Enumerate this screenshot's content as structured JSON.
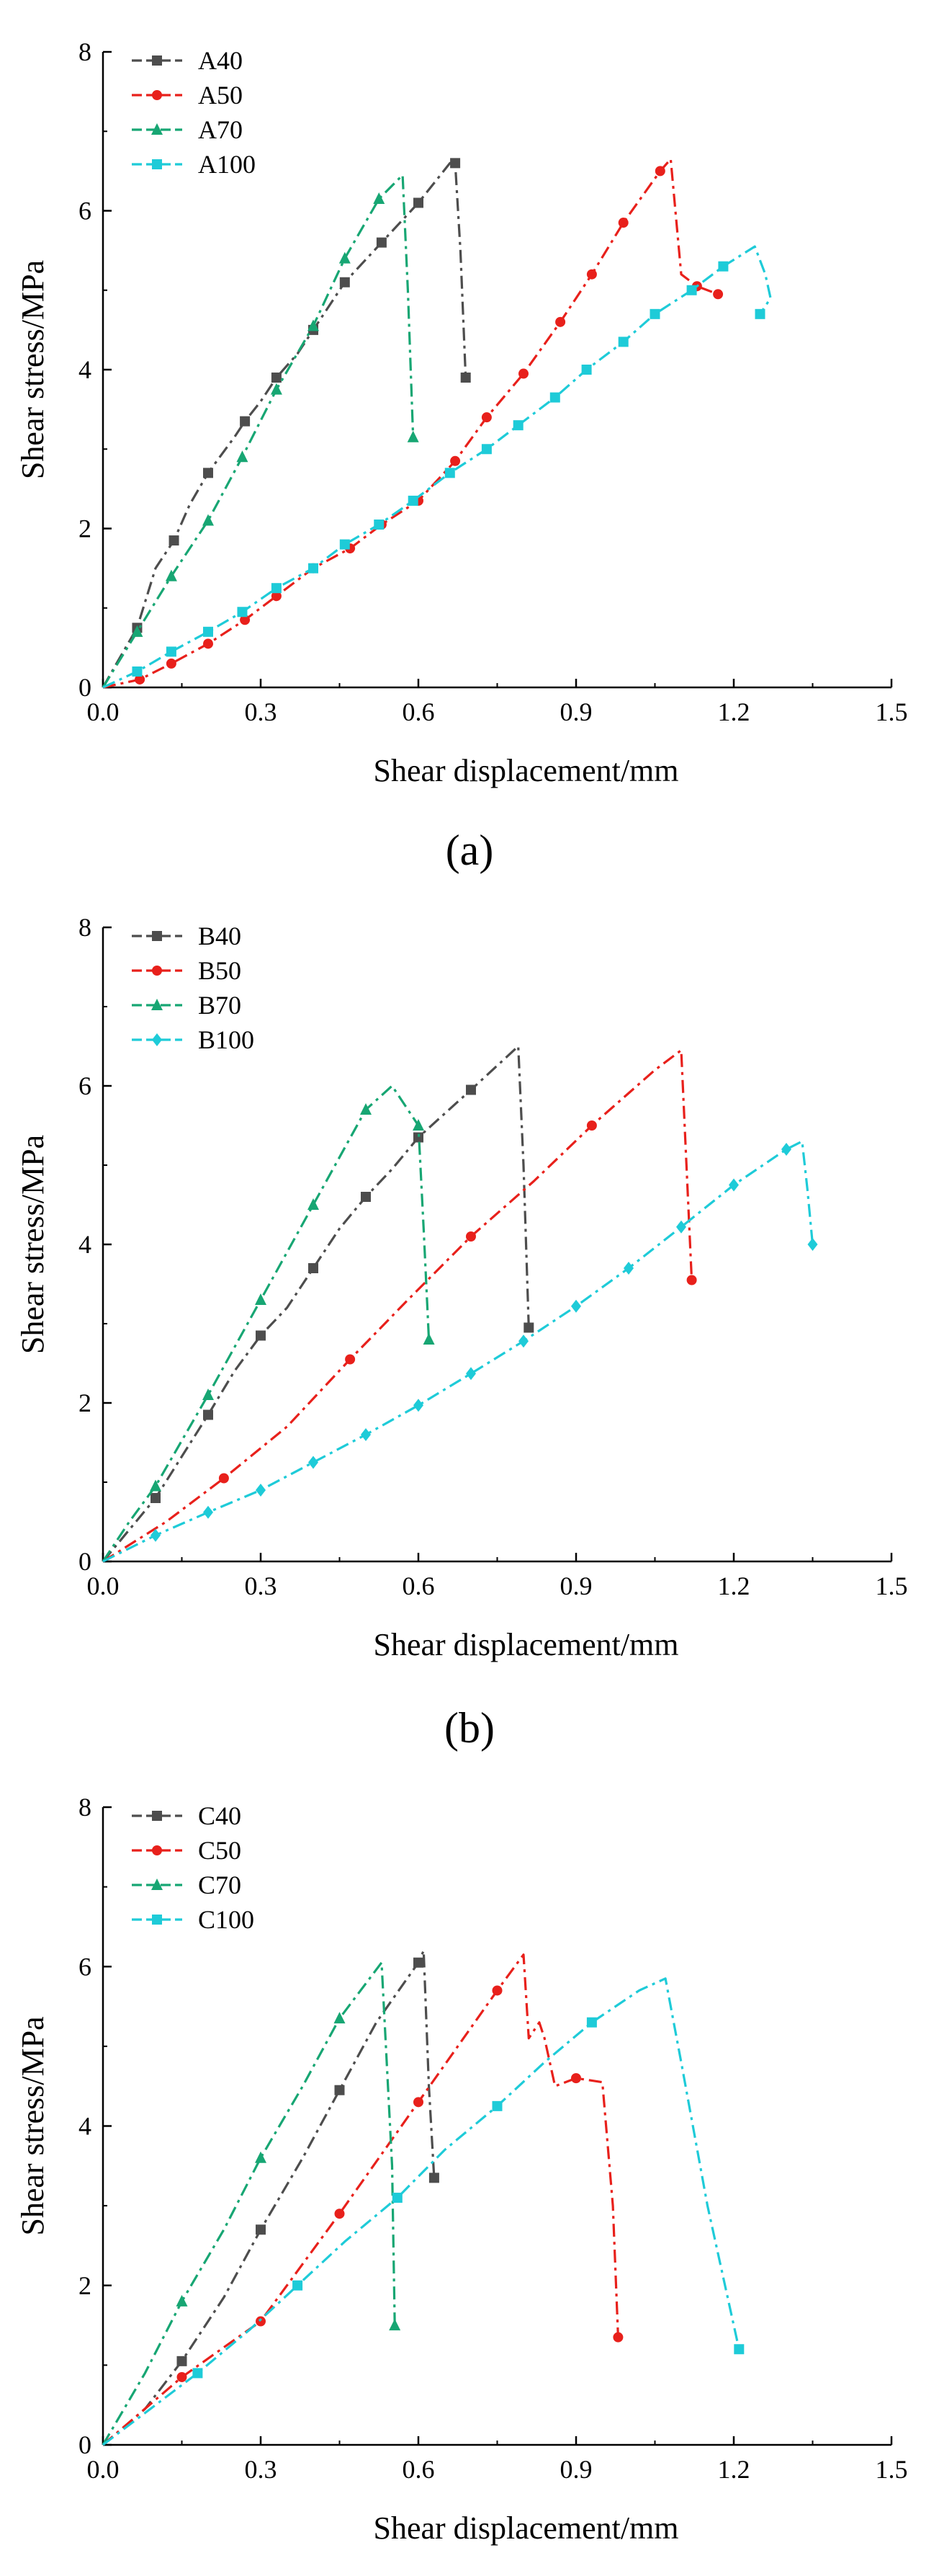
{
  "chart_data": [
    {
      "type": "line",
      "panel_label": "(a)",
      "xlabel": "Shear displacement/mm",
      "ylabel": "Shear stress/MPa",
      "xlim": [
        0,
        1.5
      ],
      "ylim": [
        0,
        8
      ],
      "xticks": [
        "0.0",
        "0.3",
        "0.6",
        "0.9",
        "1.2",
        "1.5"
      ],
      "yticks": [
        "0",
        "2",
        "4",
        "6",
        "8"
      ],
      "legend_position": "top-left",
      "series": [
        {
          "name": "A40",
          "color": "#4d4d4d",
          "marker": "square",
          "x": [
            0,
            0.03,
            0.065,
            0.1,
            0.135,
            0.165,
            0.2,
            0.25,
            0.27,
            0.3,
            0.33,
            0.37,
            0.4,
            0.46,
            0.53,
            0.6,
            0.66,
            0.67,
            0.68,
            0.69
          ],
          "y": [
            0,
            0.35,
            0.75,
            1.5,
            1.85,
            2.3,
            2.7,
            3.15,
            3.35,
            3.6,
            3.9,
            4.2,
            4.5,
            5.1,
            5.6,
            6.1,
            6.6,
            6.6,
            5.5,
            3.9
          ],
          "marker_x": [
            0.065,
            0.135,
            0.2,
            0.27,
            0.33,
            0.4,
            0.46,
            0.53,
            0.6,
            0.67,
            0.69
          ],
          "marker_y": [
            0.75,
            1.85,
            2.7,
            3.35,
            3.9,
            4.5,
            5.1,
            5.6,
            6.1,
            6.6,
            3.9
          ]
        },
        {
          "name": "A50",
          "color": "#e8201b",
          "marker": "circle",
          "x": [
            0,
            0.07,
            0.13,
            0.2,
            0.27,
            0.33,
            0.4,
            0.47,
            0.53,
            0.6,
            0.67,
            0.73,
            0.8,
            0.87,
            0.93,
            0.99,
            1.06,
            1.08,
            1.1,
            1.13,
            1.17
          ],
          "y": [
            0,
            0.1,
            0.3,
            0.55,
            0.85,
            1.15,
            1.5,
            1.75,
            2.05,
            2.35,
            2.85,
            3.4,
            3.95,
            4.6,
            5.2,
            5.85,
            6.5,
            6.65,
            5.2,
            5.05,
            4.95
          ],
          "marker_x": [
            0.07,
            0.13,
            0.2,
            0.27,
            0.33,
            0.4,
            0.47,
            0.53,
            0.6,
            0.67,
            0.73,
            0.8,
            0.87,
            0.93,
            0.99,
            1.06,
            1.13,
            1.17
          ],
          "marker_y": [
            0.1,
            0.3,
            0.55,
            0.85,
            1.15,
            1.5,
            1.75,
            2.05,
            2.35,
            2.85,
            3.4,
            3.95,
            4.6,
            5.2,
            5.85,
            6.5,
            5.05,
            4.95
          ]
        },
        {
          "name": "A70",
          "color": "#17a673",
          "marker": "triangle",
          "x": [
            0,
            0.065,
            0.13,
            0.2,
            0.265,
            0.33,
            0.4,
            0.46,
            0.525,
            0.57,
            0.58,
            0.59
          ],
          "y": [
            0,
            0.7,
            1.4,
            2.1,
            2.9,
            3.75,
            4.55,
            5.4,
            6.15,
            6.45,
            5.0,
            3.15
          ],
          "marker_x": [
            0.065,
            0.13,
            0.2,
            0.265,
            0.33,
            0.4,
            0.46,
            0.525,
            0.59
          ],
          "marker_y": [
            0.7,
            1.4,
            2.1,
            2.9,
            3.75,
            4.55,
            5.4,
            6.15,
            3.15
          ]
        },
        {
          "name": "A100",
          "color": "#1ecbd8",
          "marker": "square",
          "x": [
            0,
            0.065,
            0.13,
            0.2,
            0.265,
            0.33,
            0.4,
            0.46,
            0.525,
            0.59,
            0.66,
            0.73,
            0.79,
            0.86,
            0.92,
            0.99,
            1.05,
            1.12,
            1.18,
            1.24,
            1.26,
            1.27,
            1.25
          ],
          "y": [
            0,
            0.2,
            0.45,
            0.7,
            0.95,
            1.25,
            1.5,
            1.8,
            2.05,
            2.35,
            2.7,
            3.0,
            3.3,
            3.65,
            4.0,
            4.35,
            4.7,
            5.0,
            5.3,
            5.55,
            5.2,
            4.9,
            4.7
          ],
          "marker_x": [
            0.065,
            0.13,
            0.2,
            0.265,
            0.33,
            0.4,
            0.46,
            0.525,
            0.59,
            0.66,
            0.73,
            0.79,
            0.86,
            0.92,
            0.99,
            1.05,
            1.12,
            1.18,
            1.25
          ],
          "marker_y": [
            0.2,
            0.45,
            0.7,
            0.95,
            1.25,
            1.5,
            1.8,
            2.05,
            2.35,
            2.7,
            3.0,
            3.3,
            3.65,
            4.0,
            4.35,
            4.7,
            5.0,
            5.3,
            4.7
          ]
        }
      ]
    },
    {
      "type": "line",
      "panel_label": "(b)",
      "xlabel": "Shear displacement/mm",
      "ylabel": "Shear stress/MPa",
      "xlim": [
        0,
        1.5
      ],
      "ylim": [
        0,
        8
      ],
      "xticks": [
        "0.0",
        "0.3",
        "0.6",
        "0.9",
        "1.2",
        "1.5"
      ],
      "yticks": [
        "0",
        "2",
        "4",
        "6",
        "8"
      ],
      "legend_position": "top-left",
      "series": [
        {
          "name": "B40",
          "color": "#4d4d4d",
          "marker": "square",
          "x": [
            0,
            0.05,
            0.1,
            0.2,
            0.25,
            0.3,
            0.35,
            0.4,
            0.45,
            0.5,
            0.55,
            0.6,
            0.7,
            0.79,
            0.8,
            0.81
          ],
          "y": [
            0,
            0.4,
            0.8,
            1.85,
            2.4,
            2.85,
            3.2,
            3.7,
            4.2,
            4.6,
            4.95,
            5.35,
            5.95,
            6.5,
            5.0,
            2.95
          ],
          "marker_x": [
            0.1,
            0.2,
            0.3,
            0.4,
            0.5,
            0.6,
            0.7,
            0.81
          ],
          "marker_y": [
            0.8,
            1.85,
            2.85,
            3.7,
            4.6,
            5.35,
            5.95,
            2.95
          ]
        },
        {
          "name": "B50",
          "color": "#e8201b",
          "marker": "circle",
          "x": [
            0,
            0.12,
            0.23,
            0.35,
            0.47,
            0.58,
            0.7,
            0.82,
            0.93,
            1.05,
            1.1,
            1.11,
            1.12
          ],
          "y": [
            0,
            0.5,
            1.05,
            1.7,
            2.55,
            3.3,
            4.1,
            4.8,
            5.5,
            6.2,
            6.45,
            5.0,
            3.55
          ],
          "marker_x": [
            0.23,
            0.47,
            0.7,
            0.93,
            1.12
          ],
          "marker_y": [
            1.05,
            2.55,
            4.1,
            5.5,
            3.55
          ]
        },
        {
          "name": "B70",
          "color": "#17a673",
          "marker": "triangle",
          "x": [
            0,
            0.05,
            0.1,
            0.2,
            0.3,
            0.4,
            0.5,
            0.55,
            0.6,
            0.61,
            0.62
          ],
          "y": [
            0,
            0.5,
            0.95,
            2.1,
            3.3,
            4.5,
            5.7,
            6.0,
            5.5,
            4.2,
            2.8
          ],
          "marker_x": [
            0.1,
            0.2,
            0.3,
            0.4,
            0.5,
            0.6,
            0.62
          ],
          "marker_y": [
            0.95,
            2.1,
            3.3,
            4.5,
            5.7,
            5.5,
            2.8
          ]
        },
        {
          "name": "B100",
          "color": "#1ecbd8",
          "marker": "diamond",
          "x": [
            0,
            0.1,
            0.2,
            0.3,
            0.4,
            0.5,
            0.6,
            0.7,
            0.8,
            0.9,
            1.0,
            1.1,
            1.2,
            1.3,
            1.33,
            1.34,
            1.35
          ],
          "y": [
            0,
            0.33,
            0.62,
            0.9,
            1.25,
            1.6,
            1.97,
            2.37,
            2.78,
            3.22,
            3.7,
            4.22,
            4.75,
            5.2,
            5.3,
            4.7,
            4.0
          ],
          "marker_x": [
            0.1,
            0.2,
            0.3,
            0.4,
            0.5,
            0.6,
            0.7,
            0.8,
            0.9,
            1.0,
            1.1,
            1.2,
            1.3,
            1.35
          ],
          "marker_y": [
            0.33,
            0.62,
            0.9,
            1.25,
            1.6,
            1.97,
            2.37,
            2.78,
            3.22,
            3.7,
            4.22,
            4.75,
            5.2,
            4.0
          ]
        }
      ]
    },
    {
      "type": "line",
      "panel_label": "",
      "xlabel": "Shear displacement/mm",
      "ylabel": "Shear stress/MPa",
      "xlim": [
        0,
        1.5
      ],
      "ylim": [
        0,
        8
      ],
      "xticks": [
        "0.0",
        "0.3",
        "0.6",
        "0.9",
        "1.2",
        "1.5"
      ],
      "yticks": [
        "0",
        "2",
        "4",
        "6",
        "8"
      ],
      "legend_position": "top-left",
      "series": [
        {
          "name": "C40",
          "color": "#4d4d4d",
          "marker": "square",
          "x": [
            0,
            0.08,
            0.15,
            0.23,
            0.3,
            0.38,
            0.45,
            0.52,
            0.6,
            0.61,
            0.62,
            0.63
          ],
          "y": [
            0,
            0.45,
            1.05,
            1.85,
            2.7,
            3.6,
            4.45,
            5.3,
            6.05,
            6.2,
            4.5,
            3.35
          ],
          "marker_x": [
            0.15,
            0.3,
            0.45,
            0.6,
            0.63
          ],
          "marker_y": [
            1.05,
            2.7,
            4.45,
            6.05,
            3.35
          ]
        },
        {
          "name": "C50",
          "color": "#e8201b",
          "marker": "circle",
          "x": [
            0,
            0.15,
            0.3,
            0.45,
            0.6,
            0.75,
            0.8,
            0.81,
            0.83,
            0.84,
            0.86,
            0.9,
            0.95,
            0.97,
            0.98
          ],
          "y": [
            0,
            0.85,
            1.55,
            2.9,
            4.3,
            5.7,
            6.15,
            5.1,
            5.3,
            5.1,
            4.5,
            4.6,
            4.55,
            3.0,
            1.35
          ],
          "marker_x": [
            0.15,
            0.3,
            0.45,
            0.6,
            0.75,
            0.9,
            0.98
          ],
          "marker_y": [
            0.85,
            1.55,
            2.9,
            4.3,
            5.7,
            4.6,
            1.35
          ]
        },
        {
          "name": "C70",
          "color": "#17a673",
          "marker": "triangle",
          "x": [
            0,
            0.08,
            0.15,
            0.23,
            0.3,
            0.38,
            0.45,
            0.53,
            0.55,
            0.555
          ],
          "y": [
            0,
            0.9,
            1.8,
            2.7,
            3.6,
            4.5,
            5.35,
            6.05,
            3.5,
            1.5
          ],
          "marker_x": [
            0.15,
            0.3,
            0.45,
            0.555
          ],
          "marker_y": [
            1.8,
            3.6,
            5.35,
            1.5
          ]
        },
        {
          "name": "C100",
          "color": "#1ecbd8",
          "marker": "square",
          "x": [
            0,
            0.09,
            0.18,
            0.28,
            0.37,
            0.46,
            0.56,
            0.65,
            0.75,
            0.84,
            0.93,
            1.02,
            1.07,
            1.1,
            1.15,
            1.21
          ],
          "y": [
            0,
            0.45,
            0.9,
            1.45,
            2.0,
            2.55,
            3.1,
            3.7,
            4.25,
            4.8,
            5.3,
            5.7,
            5.85,
            4.8,
            3.0,
            1.2
          ],
          "marker_x": [
            0.18,
            0.37,
            0.56,
            0.75,
            0.93,
            1.21
          ],
          "marker_y": [
            0.9,
            2.0,
            3.1,
            4.25,
            5.3,
            1.2
          ]
        }
      ]
    }
  ]
}
